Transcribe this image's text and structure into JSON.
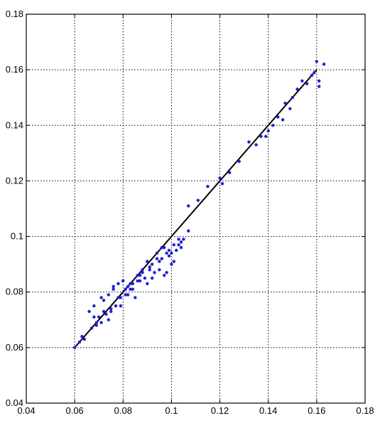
{
  "chart_data": {
    "type": "scatter",
    "title": "",
    "xlabel": "",
    "ylabel": "",
    "xlim": [
      0.04,
      0.18
    ],
    "ylim": [
      0.04,
      0.18
    ],
    "xticks": [
      0.04,
      0.06,
      0.08,
      0.1,
      0.12,
      0.14,
      0.16,
      0.18
    ],
    "yticks": [
      0.04,
      0.06,
      0.08,
      0.1,
      0.12,
      0.14,
      0.16,
      0.18
    ],
    "xtick_labels": [
      "0.04",
      "0.06",
      "0.08",
      "0.1",
      "0.12",
      "0.14",
      "0.16",
      "0.18"
    ],
    "ytick_labels": [
      "0.04",
      "0.06",
      "0.08",
      "0.1",
      "0.12",
      "0.14",
      "0.16",
      "0.18"
    ],
    "grid": true,
    "grid_style": "dotted",
    "legend": false,
    "colors": {
      "points": "#1f1fd6",
      "fit_line": "#000000",
      "axes": "#000000",
      "grid": "#000000"
    },
    "series": [
      {
        "kind": "points",
        "x": [
          0.06,
          0.062,
          0.063,
          0.064,
          0.066,
          0.067,
          0.068,
          0.069,
          0.07,
          0.071,
          0.072,
          0.073,
          0.074,
          0.075,
          0.076,
          0.077,
          0.078,
          0.079,
          0.08,
          0.081,
          0.082,
          0.083,
          0.084,
          0.085,
          0.086,
          0.087,
          0.088,
          0.089,
          0.09,
          0.091,
          0.092,
          0.093,
          0.094,
          0.095,
          0.096,
          0.097,
          0.098,
          0.099,
          0.1,
          0.101,
          0.102,
          0.103,
          0.104,
          0.105,
          0.107,
          0.068,
          0.071,
          0.074,
          0.076,
          0.079,
          0.082,
          0.084,
          0.087,
          0.09,
          0.092,
          0.095,
          0.097,
          0.1,
          0.101,
          0.104,
          0.107,
          0.111,
          0.115,
          0.12,
          0.121,
          0.124,
          0.128,
          0.132,
          0.135,
          0.137,
          0.139,
          0.14,
          0.142,
          0.144,
          0.146,
          0.147,
          0.149,
          0.15,
          0.152,
          0.154,
          0.156,
          0.158,
          0.159,
          0.16,
          0.161,
          0.161,
          0.163,
          0.069,
          0.072,
          0.075,
          0.078,
          0.081,
          0.083,
          0.086,
          0.088,
          0.091,
          0.094,
          0.096,
          0.098,
          0.099,
          0.103
        ],
        "y": [
          0.06,
          0.062,
          0.064,
          0.063,
          0.073,
          0.067,
          0.071,
          0.068,
          0.071,
          0.069,
          0.077,
          0.072,
          0.079,
          0.073,
          0.081,
          0.075,
          0.083,
          0.078,
          0.084,
          0.079,
          0.082,
          0.081,
          0.083,
          0.078,
          0.086,
          0.084,
          0.088,
          0.085,
          0.083,
          0.089,
          0.09,
          0.087,
          0.094,
          0.091,
          0.092,
          0.086,
          0.094,
          0.093,
          0.09,
          0.097,
          0.095,
          0.099,
          0.098,
          0.099,
          0.102,
          0.075,
          0.078,
          0.07,
          0.082,
          0.075,
          0.079,
          0.081,
          0.086,
          0.091,
          0.085,
          0.088,
          0.096,
          0.094,
          0.091,
          0.096,
          0.111,
          0.113,
          0.118,
          0.121,
          0.119,
          0.123,
          0.127,
          0.134,
          0.133,
          0.136,
          0.136,
          0.138,
          0.14,
          0.143,
          0.142,
          0.148,
          0.146,
          0.15,
          0.153,
          0.156,
          0.155,
          0.158,
          0.159,
          0.163,
          0.156,
          0.154,
          0.162,
          0.069,
          0.073,
          0.074,
          0.078,
          0.081,
          0.083,
          0.084,
          0.087,
          0.088,
          0.092,
          0.096,
          0.087,
          0.095,
          0.097
        ]
      },
      {
        "kind": "fit_line",
        "x": [
          0.06,
          0.16
        ],
        "y": [
          0.06,
          0.16
        ]
      }
    ]
  }
}
